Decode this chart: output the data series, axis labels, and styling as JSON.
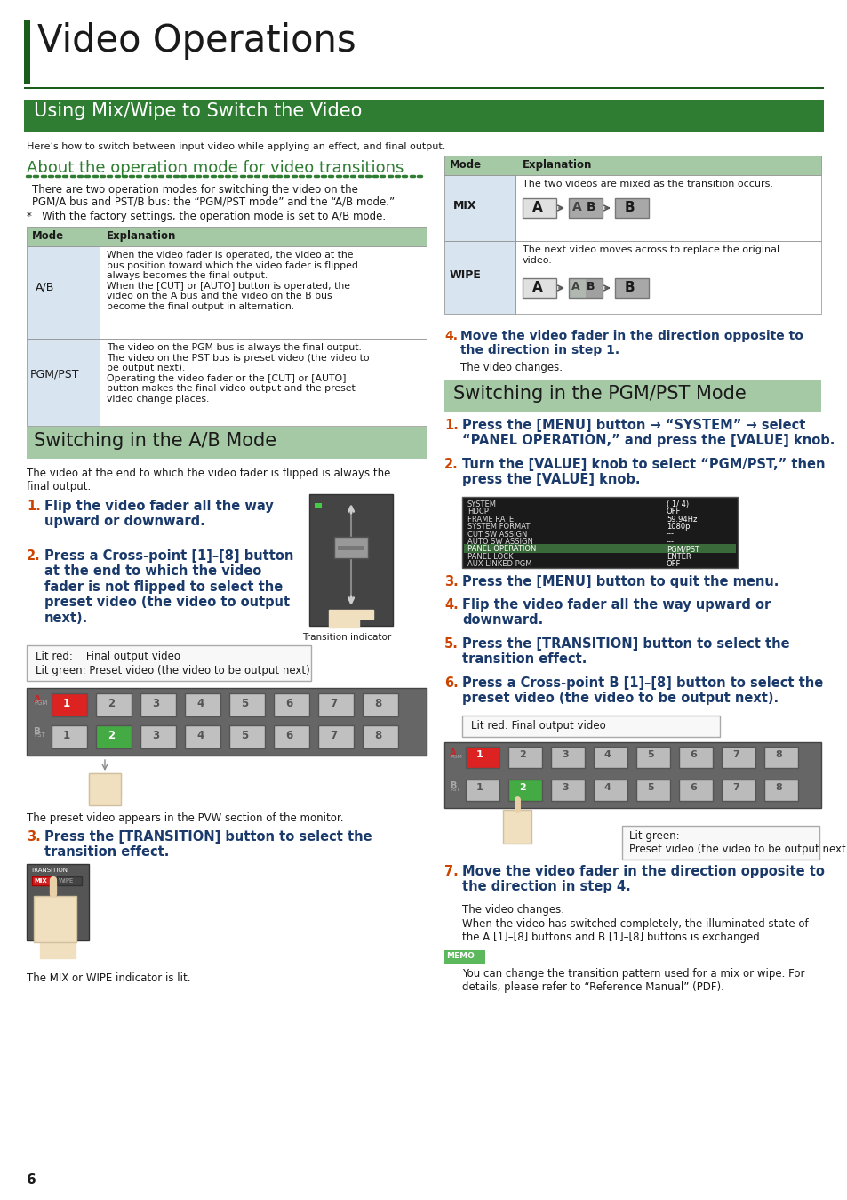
{
  "page_bg": "#ffffff",
  "title_bar_color": "#1a5c1a",
  "section1_bar_color": "#2e7d32",
  "section_ab_bar_color": "#a5c8a5",
  "section_pgm_bar_color": "#a5c8a5",
  "green_title": "#2e7d32",
  "orange_num": "#cc4400",
  "blue_bold": "#1a3a6b",
  "dark_text": "#1a1a1a",
  "table_header_bg": "#a5c8a5",
  "table_cell_left_bg": "#d8e4f0",
  "table_cell_right_bg": "#ffffff",
  "memo_bg": "#5cb85c",
  "title": "Video Operations",
  "section1_title": "Using Mix/Wipe to Switch the Video",
  "section2_title": "Switching in the A/B Mode",
  "section3_title": "Switching in the PGM/PST Mode",
  "intro_text": "Here’s how to switch between input video while applying an effect, and final output.",
  "about_heading": "About the operation mode for video transitions",
  "about_text1": "There are two operation modes for switching the video on the",
  "about_text2": "PGM/A bus and PST/B bus: the “PGM/PST mode” and the “A/B mode.”",
  "about_note": "*   With the factory settings, the operation mode is set to A/B mode.",
  "page_num": "6"
}
